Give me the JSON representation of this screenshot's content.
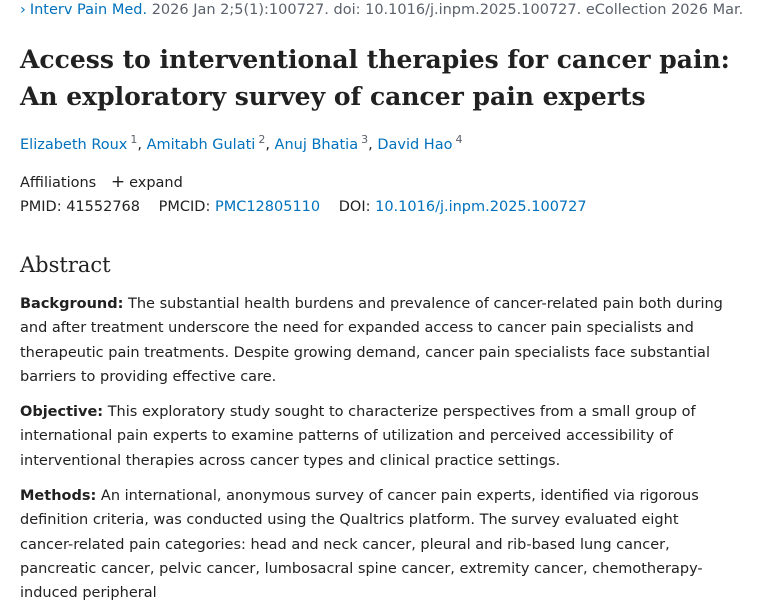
{
  "citation": {
    "chevron": "›",
    "journal": "Interv Pain Med.",
    "details": "2026 Jan 2;5(1):100727. doi: 10.1016/j.inpm.2025.100727. eCollection 2026 Mar."
  },
  "title": {
    "line1": "Access to interventional therapies for cancer pain:",
    "line2": "An exploratory survey of cancer pain experts"
  },
  "authors": [
    {
      "name": "Elizabeth Roux",
      "sup": "1"
    },
    {
      "name": "Amitabh Gulati",
      "sup": "2"
    },
    {
      "name": "Anuj Bhatia",
      "sup": "3"
    },
    {
      "name": "David Hao",
      "sup": "4"
    }
  ],
  "author_separator": ",",
  "affiliations": {
    "label": "Affiliations",
    "expand_icon": "+",
    "expand_label": "expand"
  },
  "ids": {
    "pmid_label": "PMID:",
    "pmid": "41552768",
    "pmcid_label": "PMCID:",
    "pmcid": "PMC12805110",
    "doi_label": "DOI:",
    "doi": "10.1016/j.inpm.2025.100727"
  },
  "abstract": {
    "heading": "Abstract",
    "background_label": "Background:",
    "background_text": " The substantial health burdens and prevalence of cancer-related pain both during and after treatment underscore the need for expanded access to cancer pain specialists and therapeutic pain treatments. Despite growing demand, cancer pain specialists face substantial barriers to providing effective care.",
    "objective_label": "Objective:",
    "objective_text": " This exploratory study sought to characterize perspectives from a small group of international pain experts to examine patterns of utilization and perceived accessibility of interventional therapies across cancer types and clinical practice settings.",
    "methods_label": "Methods:",
    "methods_text": " An international, anonymous survey of cancer pain experts, identified via rigorous definition criteria, was conducted using the Qualtrics platform. The survey evaluated eight cancer-related pain categories: head and neck cancer, pleural and rib-based lung cancer, pancreatic cancer, pelvic cancer, lumbosacral spine cancer, extremity cancer, chemotherapy-induced peripheral"
  }
}
